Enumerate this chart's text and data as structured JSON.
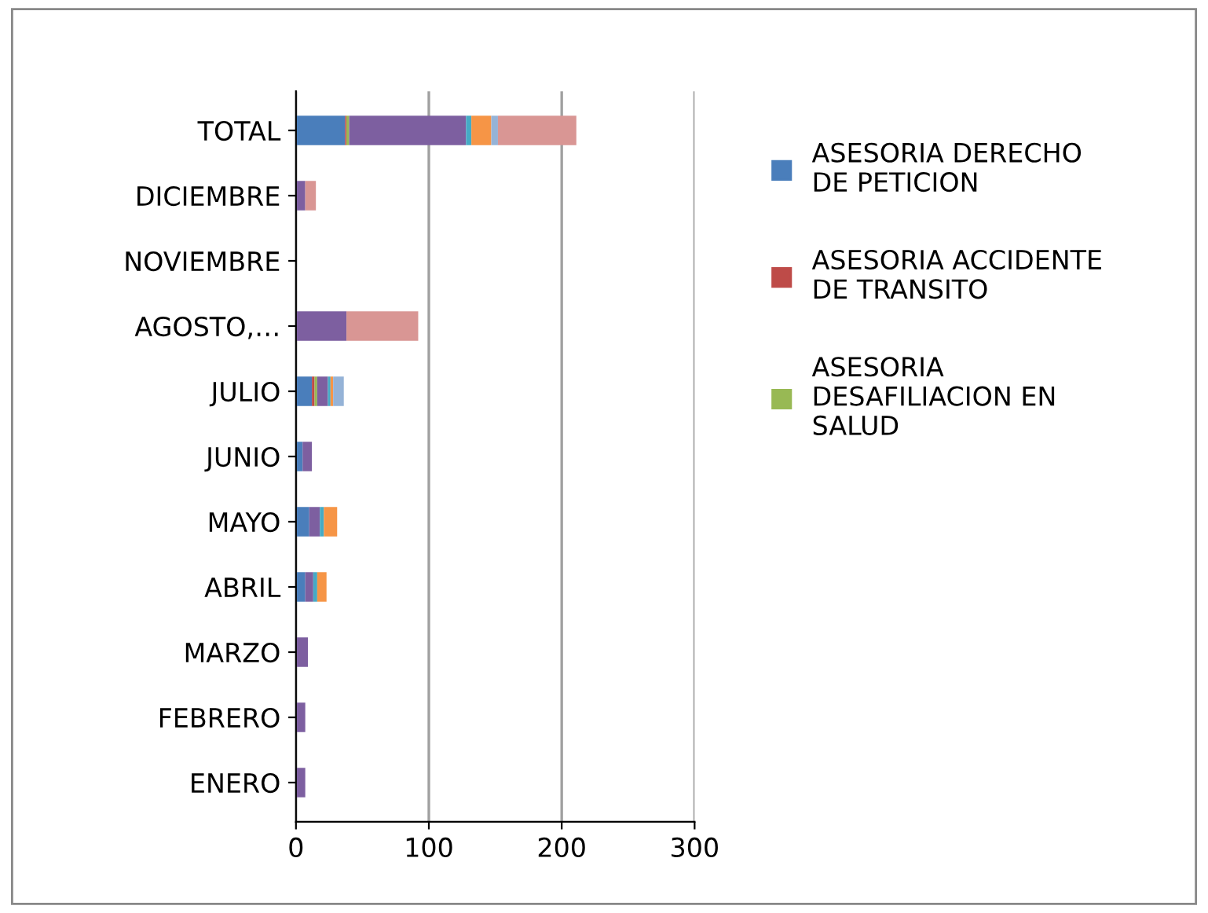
{
  "chart_data": {
    "type": "bar",
    "orientation": "horizontal",
    "stacked": true,
    "categories": [
      "TOTAL",
      "DICIEMBRE",
      "NOVIEMBRE",
      "AGOSTO,…",
      "JULIO",
      "JUNIO",
      "MAYO",
      "ABRIL",
      "MARZO",
      "FEBRERO",
      "ENERO"
    ],
    "series": [
      {
        "name": "ASESORIA DERECHO DE PETICION",
        "color": "#4a7ebb",
        "values": [
          37,
          0,
          0,
          0,
          12,
          5,
          10,
          7,
          0,
          0,
          0
        ]
      },
      {
        "name": "ASESORIA ACCIDENTE DE TRANSITO",
        "color": "#be4b48",
        "values": [
          1,
          0,
          0,
          0,
          2,
          0,
          0,
          0,
          0,
          0,
          0
        ]
      },
      {
        "name": "ASESORIA DESAFILIACION EN SALUD",
        "color": "#98b954",
        "values": [
          2,
          0,
          0,
          0,
          2,
          0,
          0,
          0,
          0,
          0,
          0
        ]
      },
      {
        "color": "#7d5fa0",
        "values": [
          88,
          7,
          0,
          38,
          8,
          7,
          8,
          6,
          9,
          7,
          7
        ]
      },
      {
        "color": "#46aac5",
        "values": [
          4,
          0,
          0,
          0,
          2,
          0,
          3,
          3,
          0,
          0,
          0
        ]
      },
      {
        "color": "#f69546",
        "values": [
          15,
          0,
          0,
          0,
          2,
          0,
          10,
          7,
          0,
          0,
          0
        ]
      },
      {
        "color": "#95b3d7",
        "values": [
          5,
          0,
          0,
          0,
          8,
          0,
          0,
          0,
          0,
          0,
          0
        ]
      },
      {
        "color": "#d99694",
        "values": [
          59,
          8,
          0,
          54,
          0,
          0,
          0,
          0,
          0,
          0,
          0
        ]
      }
    ],
    "xlim": [
      0,
      300
    ],
    "xticks": [
      0,
      100,
      200,
      300
    ],
    "grid": "x",
    "legend": "right"
  }
}
